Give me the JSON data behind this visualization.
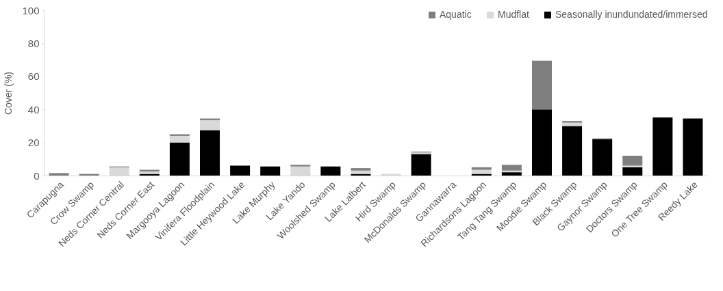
{
  "chart_data": {
    "type": "bar",
    "stacked": true,
    "ylabel": "Cover (%)",
    "ylim": [
      0,
      100
    ],
    "yticks": [
      0,
      20,
      40,
      60,
      80,
      100
    ],
    "grid": false,
    "legend": "top right",
    "categories": [
      "Carapugna",
      "Crow Swamp",
      "Neds Corner Central",
      "Neds Corner East",
      "Margooya Lagoon",
      "Vinifera Floodplain",
      "Little Heywood Lake",
      "Lake Murphy",
      "Lake Yando",
      "Woolshed Swamp",
      "Lake Lalbert",
      "Hird Swamp",
      "McDonalds Swamp",
      "Gannawarra",
      "Richardsons Lagoon",
      "Tang Tang Swamp",
      "Moodie Swamp",
      "Black Swamp",
      "Gaynor Swamp",
      "Doctors Swamp",
      "One Tree Swamp",
      "Reedy Lake"
    ],
    "series": [
      {
        "name": "Seasonally inundundated/immersed",
        "color": "#000000",
        "values": [
          0,
          0,
          0,
          1,
          20,
          27.5,
          6,
          5.5,
          0,
          5.5,
          1,
          0,
          13,
          0,
          1,
          2,
          40,
          30,
          22,
          5,
          35,
          34.5
        ]
      },
      {
        "name": "Mudflat",
        "color": "#d9d9d9",
        "values": [
          0,
          0,
          5,
          1.5,
          4,
          6,
          0,
          0,
          5.5,
          0,
          2,
          1,
          1,
          0,
          2.5,
          1,
          0,
          2,
          0,
          1,
          0,
          0
        ]
      },
      {
        "name": "Aquatic",
        "color": "#7f7f7f",
        "values": [
          1.5,
          1,
          0.5,
          1,
          1,
          1,
          0,
          0,
          1,
          0,
          1.5,
          0,
          0.5,
          0,
          1.5,
          3.5,
          29.5,
          1,
          0.5,
          6,
          0.5,
          0
        ]
      }
    ]
  }
}
